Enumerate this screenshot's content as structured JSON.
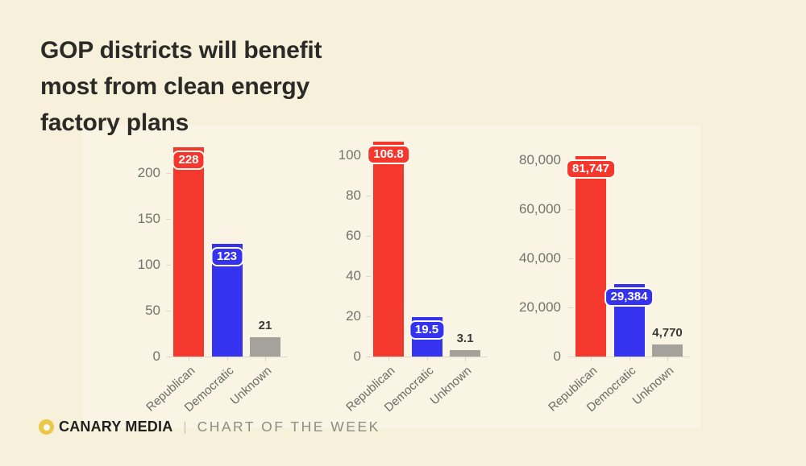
{
  "page": {
    "background": "#f7f0da",
    "panel_background": "#f9f4e4",
    "title_lines": [
      "GOP districts will benefit",
      "most from clean energy",
      "factory plans"
    ],
    "title": "GOP districts will benefit most from clean energy factory plans"
  },
  "footer": {
    "brand": "CANARY MEDIA",
    "divider": "|",
    "label": "CHART OF THE WEEK",
    "logo_color": "#ecc84a"
  },
  "colors": {
    "republican_red": "#f5382e",
    "democratic_blue": "#3533ef",
    "unknown_gray": "#a5a29c",
    "tick_text": "#73736e",
    "category_text": "#6c6c66",
    "title_text": "#2b2a27"
  },
  "chart_data": [
    {
      "type": "bar",
      "categories": [
        "Republican",
        "Democratic",
        "Unknown"
      ],
      "values": [
        228,
        123,
        21
      ],
      "value_labels": [
        "228",
        "123",
        "21"
      ],
      "label_badge": [
        true,
        true,
        false
      ],
      "bar_colors": [
        "#f5382e",
        "#3533ef",
        "#a5a29c"
      ],
      "yticks": [
        0,
        50,
        100,
        150,
        200
      ],
      "ytick_labels": [
        "0",
        "50",
        "100",
        "150",
        "200"
      ],
      "ylim": [
        0,
        240
      ],
      "grid": false,
      "legend": "none",
      "xlabel": "",
      "ylabel": "",
      "title": ""
    },
    {
      "type": "bar",
      "categories": [
        "Republican",
        "Democratic",
        "Unknown"
      ],
      "values": [
        106.8,
        19.5,
        3.1
      ],
      "value_labels": [
        "106.8",
        "19.5",
        "3.1"
      ],
      "label_badge": [
        true,
        true,
        false
      ],
      "bar_colors": [
        "#f5382e",
        "#3533ef",
        "#a5a29c"
      ],
      "yticks": [
        0,
        20,
        40,
        60,
        80,
        100
      ],
      "ytick_labels": [
        "0",
        "20",
        "40",
        "60",
        "80",
        "100"
      ],
      "ylim": [
        0,
        110
      ],
      "grid": false,
      "legend": "none",
      "xlabel": "",
      "ylabel": "",
      "title": ""
    },
    {
      "type": "bar",
      "categories": [
        "Republican",
        "Democratic",
        "Unknown"
      ],
      "values": [
        81747,
        29384,
        4770
      ],
      "value_labels": [
        "81,747",
        "29,384",
        "4,770"
      ],
      "label_badge": [
        true,
        true,
        false
      ],
      "bar_colors": [
        "#f5382e",
        "#3533ef",
        "#a5a29c"
      ],
      "yticks": [
        0,
        20000,
        40000,
        60000,
        80000
      ],
      "ytick_labels": [
        "0",
        "20,000",
        "40,000",
        "60,000",
        "80,000"
      ],
      "ylim": [
        0,
        84000
      ],
      "grid": false,
      "legend": "none",
      "xlabel": "",
      "ylabel": "",
      "title": ""
    }
  ]
}
